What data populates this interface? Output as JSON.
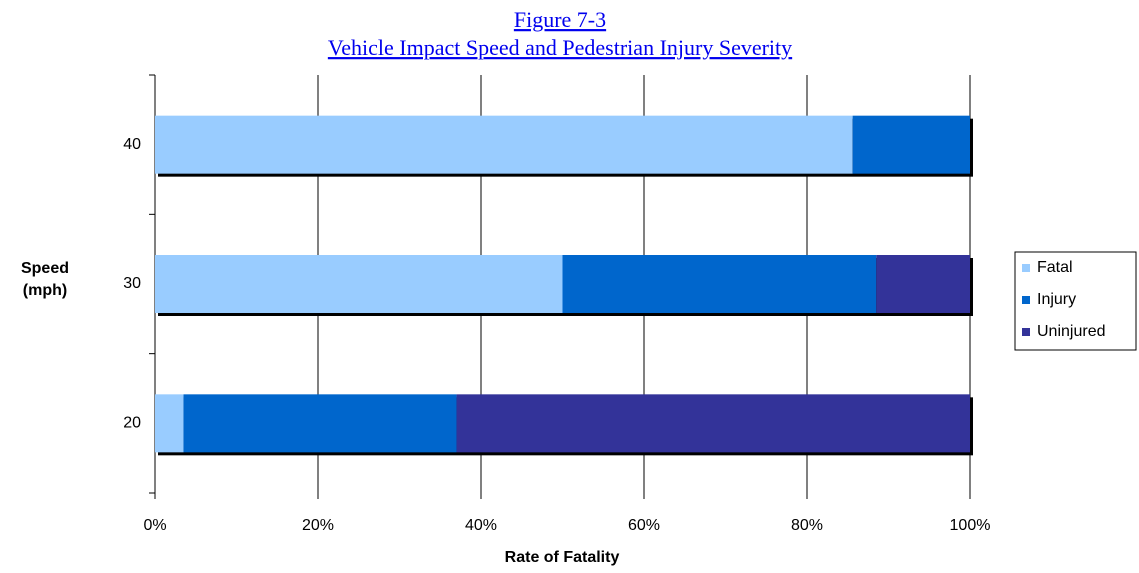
{
  "chart_data": {
    "type": "stacked-bar-horizontal",
    "title": "Figure 7-3",
    "subtitle": "Vehicle Impact Speed and Pedestrian Injury Severity",
    "x_label": "Rate of Fatality",
    "y_label": "Speed (mph)",
    "categories": [
      "40",
      "30",
      "20"
    ],
    "series": [
      {
        "name": "Fatal",
        "color": "#99ccff",
        "values": [
          85.6,
          50,
          3.5
        ]
      },
      {
        "name": "Injury",
        "color": "#0066cc",
        "values": [
          14.4,
          38.5,
          33.5
        ]
      },
      {
        "name": "Uninjured",
        "color": "#333399",
        "values": [
          0,
          11.5,
          63
        ]
      }
    ],
    "xlim": [
      0,
      100
    ],
    "xticks": [
      {
        "value": 0,
        "label": "0%"
      },
      {
        "value": 20,
        "label": "20%"
      },
      {
        "value": 40,
        "label": "40%"
      },
      {
        "value": 60,
        "label": "60%"
      },
      {
        "value": 80,
        "label": "80%"
      },
      {
        "value": 100,
        "label": "100%"
      }
    ],
    "grid": true,
    "legend": "right"
  }
}
